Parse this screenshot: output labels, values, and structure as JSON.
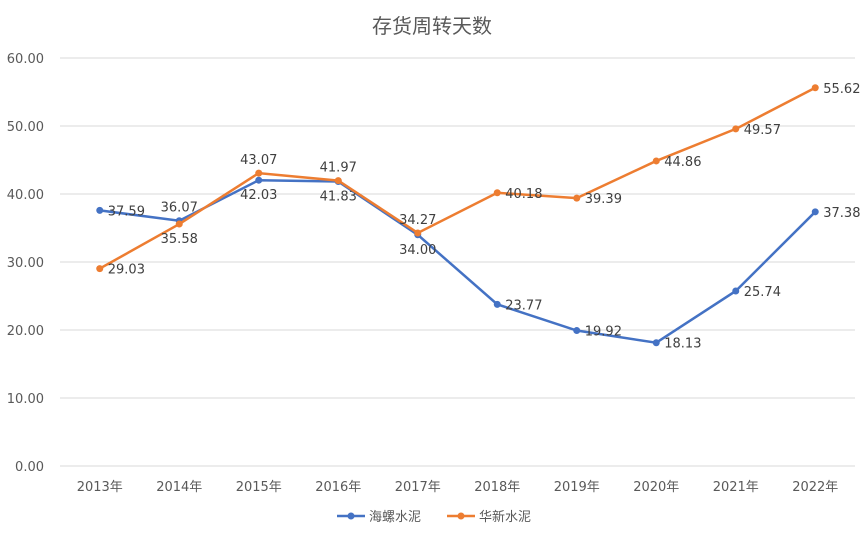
{
  "chart_data": {
    "type": "line",
    "title": "存货周转天数",
    "categories": [
      "2013年",
      "2014年",
      "2015年",
      "2016年",
      "2017年",
      "2018年",
      "2019年",
      "2020年",
      "2021年",
      "2022年"
    ],
    "ylim": [
      0,
      60
    ],
    "yticks": [
      "0.00",
      "10.00",
      "20.00",
      "30.00",
      "40.00",
      "50.00",
      "60.00"
    ],
    "grid": true,
    "legend": "bottom",
    "series": [
      {
        "name": "海螺水泥",
        "color": "#4472C4",
        "values": [
          37.59,
          36.07,
          42.03,
          41.83,
          34.0,
          23.77,
          19.92,
          18.13,
          25.74,
          37.38
        ]
      },
      {
        "name": "华新水泥",
        "color": "#ED7D31",
        "values": [
          29.03,
          35.58,
          43.07,
          41.97,
          34.27,
          40.18,
          39.39,
          44.86,
          49.57,
          55.62
        ]
      }
    ]
  }
}
